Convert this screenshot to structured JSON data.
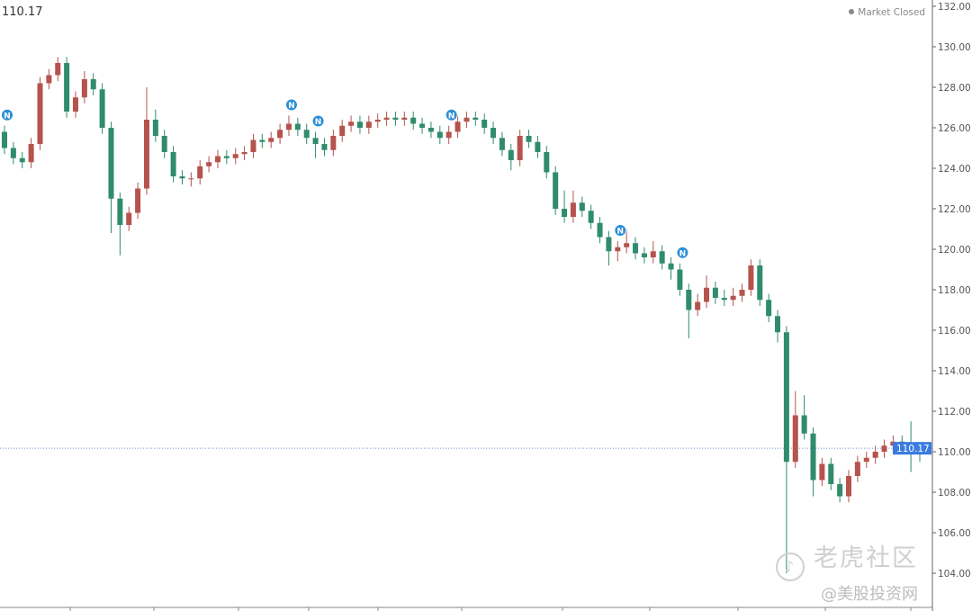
{
  "header": {
    "last_price": "110.17",
    "market_status": "Market Closed"
  },
  "watermark": {
    "title": "老虎社区",
    "subtitle": "@美股投资网"
  },
  "colors": {
    "up": "#b5534c",
    "down": "#2f8c6c",
    "price_line": "#6b8fd6",
    "price_tag": "#3b7be0",
    "news_marker": "#2b8fd6"
  },
  "chart_data": {
    "type": "candlestick",
    "ylim": [
      104,
      132
    ],
    "y_ticks": [
      "104.00",
      "106.00",
      "108.00",
      "110.00",
      "112.00",
      "114.00",
      "116.00",
      "118.00",
      "120.00",
      "122.00",
      "124.00",
      "126.00",
      "128.00",
      "130.00",
      "132.00"
    ],
    "last_price": 110.17,
    "last_price_label": "110.17",
    "grid": false,
    "news_marker_label": "N",
    "news_marker_candles": [
      0,
      32,
      35,
      50,
      69,
      76
    ],
    "candles_ohlc": [
      [
        125.8,
        126.1,
        124.7,
        125.0
      ],
      [
        125.0,
        125.3,
        124.2,
        124.5
      ],
      [
        124.5,
        124.8,
        124.0,
        124.3
      ],
      [
        124.3,
        125.5,
        124.0,
        125.2
      ],
      [
        125.2,
        128.5,
        124.9,
        128.2
      ],
      [
        128.2,
        128.9,
        127.9,
        128.6
      ],
      [
        128.6,
        129.5,
        128.3,
        129.2
      ],
      [
        129.2,
        129.5,
        126.5,
        126.8
      ],
      [
        126.8,
        127.8,
        126.5,
        127.5
      ],
      [
        127.5,
        128.8,
        127.2,
        128.4
      ],
      [
        128.4,
        128.7,
        127.6,
        127.9
      ],
      [
        127.9,
        128.2,
        125.7,
        126.0
      ],
      [
        126.0,
        126.3,
        120.8,
        122.5
      ],
      [
        122.5,
        122.8,
        119.7,
        121.2
      ],
      [
        121.2,
        122.1,
        120.9,
        121.8
      ],
      [
        121.8,
        123.3,
        121.5,
        123.0
      ],
      [
        123.0,
        128.0,
        122.7,
        126.4
      ],
      [
        126.4,
        126.9,
        125.3,
        125.6
      ],
      [
        125.6,
        125.9,
        124.5,
        124.8
      ],
      [
        124.8,
        125.1,
        123.3,
        123.6
      ],
      [
        123.6,
        123.9,
        123.2,
        123.5
      ],
      [
        123.5,
        123.8,
        123.1,
        123.5
      ],
      [
        123.5,
        124.4,
        123.2,
        124.1
      ],
      [
        124.1,
        124.6,
        123.8,
        124.3
      ],
      [
        124.3,
        124.9,
        124.0,
        124.6
      ],
      [
        124.6,
        124.9,
        124.2,
        124.5
      ],
      [
        124.5,
        125.0,
        124.2,
        124.7
      ],
      [
        124.7,
        125.1,
        124.4,
        124.8
      ],
      [
        124.8,
        125.7,
        124.5,
        125.4
      ],
      [
        125.4,
        125.7,
        125.0,
        125.3
      ],
      [
        125.3,
        125.8,
        125.0,
        125.5
      ],
      [
        125.5,
        126.2,
        125.2,
        125.9
      ],
      [
        125.9,
        126.6,
        125.6,
        126.2
      ],
      [
        126.2,
        126.5,
        125.6,
        125.9
      ],
      [
        125.9,
        126.2,
        125.2,
        125.5
      ],
      [
        125.5,
        125.8,
        124.5,
        125.2
      ],
      [
        125.2,
        125.5,
        124.6,
        124.9
      ],
      [
        124.9,
        125.9,
        124.6,
        125.6
      ],
      [
        125.6,
        126.4,
        125.3,
        126.1
      ],
      [
        126.1,
        126.6,
        125.8,
        126.3
      ],
      [
        126.3,
        126.6,
        125.7,
        126.0
      ],
      [
        126.0,
        126.6,
        125.7,
        126.3
      ],
      [
        126.3,
        126.7,
        126.0,
        126.4
      ],
      [
        126.4,
        126.8,
        126.1,
        126.5
      ],
      [
        126.5,
        126.8,
        126.1,
        126.4
      ],
      [
        126.4,
        126.8,
        126.1,
        126.5
      ],
      [
        126.5,
        126.8,
        125.9,
        126.2
      ],
      [
        126.2,
        126.5,
        125.7,
        126.0
      ],
      [
        126.0,
        126.3,
        125.5,
        125.8
      ],
      [
        125.8,
        126.1,
        125.2,
        125.5
      ],
      [
        125.5,
        126.1,
        125.2,
        125.8
      ],
      [
        125.8,
        126.6,
        125.5,
        126.3
      ],
      [
        126.3,
        126.8,
        126.0,
        126.5
      ],
      [
        126.5,
        126.8,
        126.1,
        126.4
      ],
      [
        126.4,
        126.7,
        125.7,
        126.0
      ],
      [
        126.0,
        126.3,
        125.2,
        125.5
      ],
      [
        125.5,
        125.8,
        124.6,
        124.9
      ],
      [
        124.9,
        125.2,
        123.9,
        124.4
      ],
      [
        124.4,
        125.9,
        124.1,
        125.6
      ],
      [
        125.6,
        125.9,
        125.0,
        125.3
      ],
      [
        125.3,
        125.6,
        124.5,
        124.8
      ],
      [
        124.8,
        125.1,
        123.5,
        123.8
      ],
      [
        123.8,
        124.1,
        121.7,
        122.0
      ],
      [
        122.0,
        122.9,
        121.3,
        121.6
      ],
      [
        121.6,
        122.9,
        121.3,
        122.3
      ],
      [
        122.3,
        122.6,
        121.6,
        121.9
      ],
      [
        121.9,
        122.2,
        121.0,
        121.3
      ],
      [
        121.3,
        121.6,
        120.3,
        120.6
      ],
      [
        120.6,
        120.9,
        119.2,
        119.9
      ],
      [
        119.9,
        120.4,
        119.4,
        120.1
      ],
      [
        120.1,
        121.0,
        119.8,
        120.3
      ],
      [
        120.3,
        120.6,
        119.5,
        119.8
      ],
      [
        119.8,
        120.1,
        119.3,
        119.6
      ],
      [
        119.6,
        120.4,
        119.3,
        119.9
      ],
      [
        119.9,
        120.2,
        119.0,
        119.3
      ],
      [
        119.3,
        119.6,
        118.5,
        119.0
      ],
      [
        119.0,
        119.3,
        117.7,
        118.0
      ],
      [
        118.0,
        118.3,
        115.6,
        117.0
      ],
      [
        117.0,
        117.8,
        116.7,
        117.4
      ],
      [
        117.4,
        118.7,
        117.1,
        118.1
      ],
      [
        118.1,
        118.4,
        117.3,
        117.6
      ],
      [
        117.6,
        118.0,
        117.2,
        117.5
      ],
      [
        117.5,
        118.1,
        117.2,
        117.7
      ],
      [
        117.7,
        118.3,
        117.4,
        118.0
      ],
      [
        118.0,
        119.5,
        117.7,
        119.2
      ],
      [
        119.2,
        119.5,
        117.2,
        117.5
      ],
      [
        117.5,
        117.8,
        116.4,
        116.7
      ],
      [
        116.7,
        117.0,
        115.4,
        115.9
      ],
      [
        115.9,
        116.2,
        104.0,
        109.5
      ],
      [
        109.5,
        113.0,
        109.2,
        111.8
      ],
      [
        111.8,
        112.8,
        110.6,
        110.9
      ],
      [
        110.9,
        111.2,
        107.8,
        108.6
      ],
      [
        108.6,
        109.7,
        108.3,
        109.4
      ],
      [
        109.4,
        109.7,
        108.1,
        108.4
      ],
      [
        108.4,
        108.7,
        107.5,
        107.8
      ],
      [
        107.8,
        109.1,
        107.5,
        108.8
      ],
      [
        108.8,
        109.8,
        108.5,
        109.5
      ],
      [
        109.5,
        110.0,
        109.2,
        109.7
      ],
      [
        109.7,
        110.3,
        109.4,
        110.0
      ],
      [
        110.0,
        110.6,
        109.7,
        110.3
      ],
      [
        110.3,
        110.8,
        110.0,
        110.5
      ],
      [
        110.5,
        110.8,
        110.0,
        110.3
      ],
      [
        110.3,
        111.5,
        109.0,
        110.2
      ],
      [
        110.2,
        110.4,
        109.5,
        110.17
      ]
    ]
  }
}
